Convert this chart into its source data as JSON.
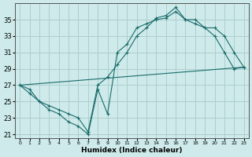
{
  "xlabel": "Humidex (Indice chaleur)",
  "background_color": "#ceeaea",
  "grid_color": "#aecece",
  "line_color": "#1a6b6b",
  "xlim": [
    -0.5,
    23.5
  ],
  "ylim": [
    20.5,
    37.0
  ],
  "xticks": [
    0,
    1,
    2,
    3,
    4,
    5,
    6,
    7,
    8,
    9,
    10,
    11,
    12,
    13,
    14,
    15,
    16,
    17,
    18,
    19,
    20,
    21,
    22,
    23
  ],
  "yticks": [
    21,
    23,
    25,
    27,
    29,
    31,
    33,
    35
  ],
  "line1_x": [
    0,
    1,
    2,
    3,
    4,
    5,
    6,
    7,
    8,
    9,
    10,
    11,
    12,
    13,
    14,
    15,
    16,
    17,
    18,
    19,
    20,
    21,
    22,
    23
  ],
  "line1_y": [
    27,
    26,
    25,
    24,
    23.5,
    22.5,
    22,
    21,
    26.5,
    23.5,
    31,
    32,
    34,
    34.5,
    35,
    35.2,
    36,
    35,
    34.5,
    34,
    33,
    31,
    29,
    29.2
  ],
  "line2_x": [
    0,
    1,
    2,
    3,
    4,
    5,
    6,
    7,
    8,
    9,
    10,
    11,
    12,
    13,
    14,
    15,
    16,
    17,
    18,
    19,
    20,
    21,
    22,
    23
  ],
  "line2_y": [
    27,
    26.5,
    25,
    24.5,
    24,
    23.5,
    23,
    21.3,
    27,
    28,
    29.5,
    31,
    33,
    34,
    35.2,
    35.5,
    36.5,
    35,
    35,
    34,
    34,
    33,
    31,
    29.2
  ],
  "line3_x": [
    0,
    23
  ],
  "line3_y": [
    27,
    29.2
  ],
  "marker": "+"
}
